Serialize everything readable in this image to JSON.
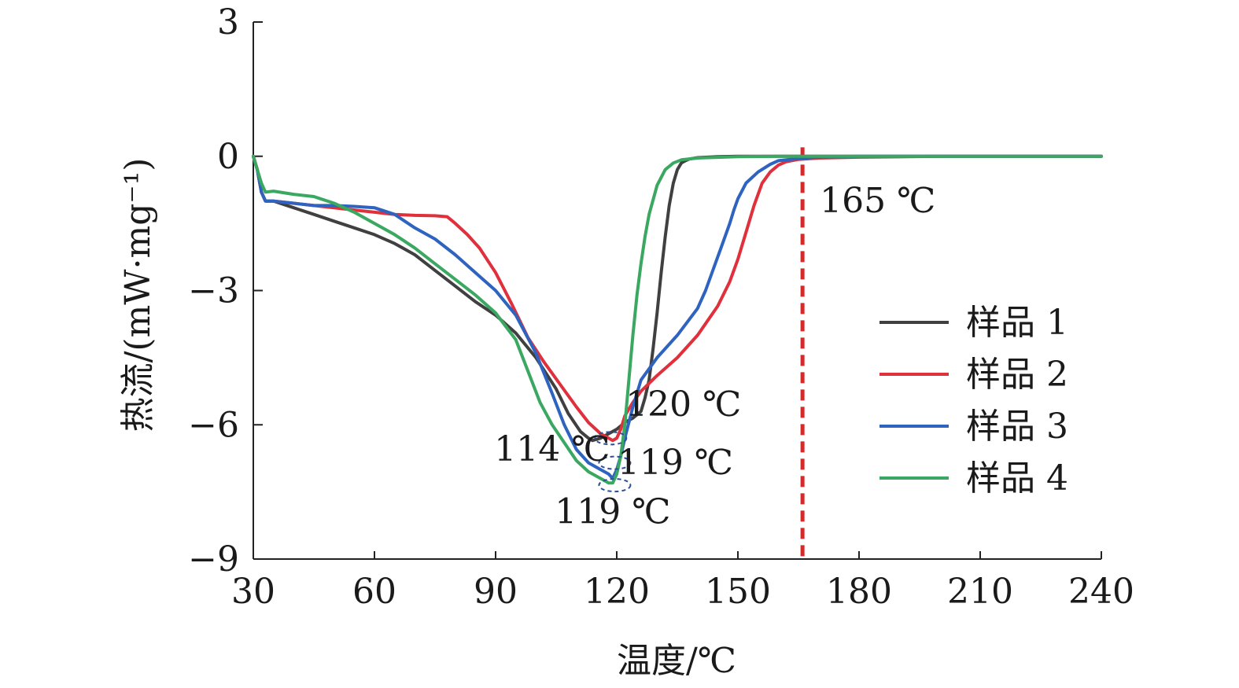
{
  "chart_data": {
    "type": "line",
    "xlabel": "温度/℃",
    "ylabel": "热流/(mW·mg⁻¹)",
    "xlim": [
      30,
      240
    ],
    "ylim": [
      -9,
      3
    ],
    "xticks": [
      30,
      60,
      90,
      120,
      150,
      180,
      210,
      240
    ],
    "yticks": [
      3,
      0,
      -3,
      -6,
      -9
    ],
    "ytick_labels": [
      "3",
      "0",
      "−3",
      "−6",
      "−9"
    ],
    "grid": false,
    "legend_position": "right",
    "series": [
      {
        "name": "样品 1",
        "color": "#404040",
        "x": [
          30,
          31,
          32,
          33,
          35,
          40,
          45,
          50,
          55,
          60,
          65,
          70,
          75,
          80,
          85,
          90,
          95,
          100,
          105,
          108,
          111,
          113,
          114,
          116,
          118,
          120,
          122,
          124,
          126,
          127,
          128,
          129,
          130,
          131,
          132,
          133,
          134,
          135,
          136,
          137,
          138,
          140,
          145,
          150,
          160,
          180,
          200,
          220,
          240
        ],
        "y": [
          0,
          -0.3,
          -0.8,
          -1.0,
          -1.0,
          -1.15,
          -1.3,
          -1.45,
          -1.6,
          -1.75,
          -1.95,
          -2.2,
          -2.55,
          -2.9,
          -3.25,
          -3.55,
          -3.95,
          -4.5,
          -5.2,
          -5.75,
          -6.15,
          -6.3,
          -6.35,
          -6.3,
          -6.2,
          -6.1,
          -5.95,
          -5.85,
          -5.7,
          -5.4,
          -5.0,
          -4.3,
          -3.5,
          -2.6,
          -1.8,
          -1.1,
          -0.6,
          -0.3,
          -0.15,
          -0.1,
          -0.06,
          -0.03,
          -0.01,
          0,
          0,
          0,
          0,
          0,
          0
        ]
      },
      {
        "name": "样品 2",
        "color": "#e0303c",
        "x": [
          30,
          31,
          32,
          33,
          35,
          40,
          45,
          50,
          55,
          60,
          65,
          70,
          75,
          78,
          80,
          83,
          86,
          90,
          94,
          98,
          102,
          106,
          110,
          113,
          116,
          118,
          119,
          120,
          121,
          122,
          124,
          126,
          130,
          135,
          140,
          145,
          148,
          150,
          152,
          154,
          156,
          158,
          160,
          162,
          165,
          170,
          180,
          200,
          220,
          240
        ],
        "y": [
          0,
          -0.3,
          -0.8,
          -1.0,
          -1.0,
          -1.05,
          -1.1,
          -1.15,
          -1.2,
          -1.25,
          -1.3,
          -1.32,
          -1.33,
          -1.35,
          -1.5,
          -1.75,
          -2.05,
          -2.6,
          -3.3,
          -4.05,
          -4.6,
          -5.1,
          -5.6,
          -5.95,
          -6.2,
          -6.3,
          -6.35,
          -6.3,
          -6.1,
          -5.8,
          -5.5,
          -5.25,
          -4.9,
          -4.5,
          -4.0,
          -3.35,
          -2.8,
          -2.3,
          -1.7,
          -1.1,
          -0.6,
          -0.35,
          -0.2,
          -0.12,
          -0.07,
          -0.04,
          -0.02,
          0,
          0,
          0
        ]
      },
      {
        "name": "样品 3",
        "color": "#2e64c0",
        "x": [
          30,
          31,
          32,
          33,
          35,
          40,
          45,
          50,
          55,
          60,
          65,
          70,
          75,
          80,
          85,
          90,
          95,
          100,
          104,
          107,
          110,
          113,
          116,
          118,
          119,
          120,
          121,
          122,
          124,
          126,
          130,
          135,
          140,
          142,
          144,
          146,
          148,
          149,
          150,
          152,
          155,
          158,
          160,
          165,
          170,
          180,
          200,
          220,
          240
        ],
        "y": [
          0,
          -0.3,
          -0.8,
          -1.0,
          -1.0,
          -1.05,
          -1.1,
          -1.1,
          -1.12,
          -1.15,
          -1.3,
          -1.6,
          -1.85,
          -2.2,
          -2.6,
          -3.0,
          -3.55,
          -4.4,
          -5.3,
          -6.0,
          -6.55,
          -6.85,
          -7.0,
          -7.1,
          -7.2,
          -7.0,
          -6.7,
          -6.3,
          -5.6,
          -5.0,
          -4.5,
          -4.0,
          -3.4,
          -3.0,
          -2.5,
          -2.0,
          -1.5,
          -1.2,
          -0.95,
          -0.6,
          -0.35,
          -0.18,
          -0.1,
          -0.05,
          -0.02,
          0,
          0,
          0,
          0
        ]
      },
      {
        "name": "样品 4",
        "color": "#3aa860",
        "x": [
          30,
          31,
          32,
          33,
          35,
          40,
          45,
          50,
          55,
          60,
          65,
          70,
          75,
          80,
          85,
          90,
          95,
          98,
          101,
          104,
          107,
          110,
          113,
          116,
          118,
          119,
          120,
          121,
          122,
          123,
          124,
          125,
          126,
          127,
          128,
          130,
          132,
          134,
          136,
          140,
          150,
          160,
          180,
          200,
          220,
          240
        ],
        "y": [
          0,
          -0.3,
          -0.6,
          -0.8,
          -0.78,
          -0.85,
          -0.9,
          -1.05,
          -1.25,
          -1.5,
          -1.75,
          -2.05,
          -2.4,
          -2.75,
          -3.1,
          -3.5,
          -4.1,
          -4.8,
          -5.5,
          -6.0,
          -6.4,
          -6.8,
          -7.05,
          -7.2,
          -7.3,
          -7.3,
          -7.1,
          -6.7,
          -6.0,
          -5.0,
          -4.0,
          -3.1,
          -2.4,
          -1.8,
          -1.3,
          -0.65,
          -0.3,
          -0.15,
          -0.08,
          -0.04,
          -0.01,
          0,
          0,
          0,
          0,
          0
        ]
      }
    ],
    "vertical_line": {
      "x": 166,
      "color": "#d42a2a",
      "label": "165 ℃"
    },
    "annotations": [
      {
        "text": "114 ℃",
        "x": 104,
        "y": -6.8
      },
      {
        "text": "120 ℃",
        "x": 136.5,
        "y": -5.8
      },
      {
        "text": "119 ℃",
        "x": 134.5,
        "y": -7.1
      },
      {
        "text": "119 ℃",
        "x": 119,
        "y": -8.2
      }
    ],
    "peak_markers": [
      {
        "cx": 118.5,
        "cy": -6.3
      },
      {
        "cx": 119.5,
        "cy": -6.85
      },
      {
        "cx": 119.5,
        "cy": -7.35
      }
    ]
  }
}
